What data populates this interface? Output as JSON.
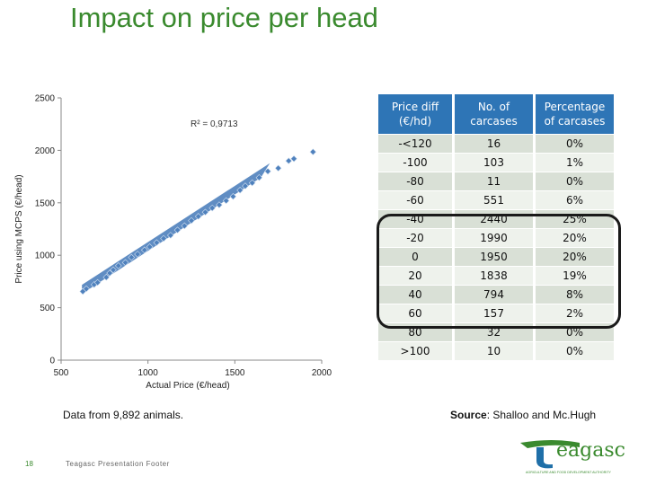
{
  "slide": {
    "title": "Impact on price per head",
    "note": "Data from 9,892 animals.",
    "source_label": "Source",
    "source_text": ": Shalloo and Mc.Hugh",
    "page_number": "18",
    "footer": "Teagasc Presentation Footer",
    "logo_word": "eagasc",
    "logo_tagline": "AGRICULTURE AND FOOD DEVELOPMENT AUTHORITY",
    "colors": {
      "title": "#3a8a2e",
      "series": "#4f81bd",
      "header": "#2e75b6",
      "row": "#d9e0d6",
      "row_alt": "#eef2ec",
      "logo": "#3a8a2e",
      "logo_accent": "#1f6fa8"
    }
  },
  "chart_data": {
    "type": "scatter",
    "xlabel": "Actual Price (€/head)",
    "ylabel": "Price using MCPS (€/head)",
    "xlim": [
      500,
      2000
    ],
    "ylim": [
      0,
      2500
    ],
    "xticks": [
      "500",
      "1000",
      "1500",
      "2000"
    ],
    "yticks": [
      "0",
      "500",
      "1000",
      "1500",
      "2000",
      "2500"
    ],
    "annotation": "R² = 0,9713",
    "grid": false,
    "legend": "none",
    "trend": {
      "x_range": [
        620,
        1960
      ],
      "y_range": [
        650,
        1980
      ]
    },
    "points": [
      [
        625,
        655
      ],
      [
        645,
        680
      ],
      [
        690,
        720
      ],
      [
        710,
        740
      ],
      [
        760,
        790
      ],
      [
        780,
        830
      ],
      [
        800,
        860
      ],
      [
        830,
        900
      ],
      [
        870,
        930
      ],
      [
        905,
        980
      ],
      [
        940,
        1010
      ],
      [
        980,
        1050
      ],
      [
        1010,
        1080
      ],
      [
        1050,
        1120
      ],
      [
        1090,
        1160
      ],
      [
        1130,
        1190
      ],
      [
        1170,
        1240
      ],
      [
        1210,
        1280
      ],
      [
        1250,
        1330
      ],
      [
        1290,
        1370
      ],
      [
        1330,
        1410
      ],
      [
        1370,
        1450
      ],
      [
        1410,
        1480
      ],
      [
        1450,
        1520
      ],
      [
        1490,
        1560
      ],
      [
        1530,
        1620
      ],
      [
        1560,
        1660
      ],
      [
        1600,
        1690
      ],
      [
        1640,
        1740
      ],
      [
        1690,
        1800
      ],
      [
        1750,
        1830
      ],
      [
        1810,
        1900
      ],
      [
        1840,
        1920
      ],
      [
        1950,
        1985
      ]
    ]
  },
  "table": {
    "headers": [
      "Price diff\n(€/hd)",
      "No. of\ncarcases",
      "Percentage\nof carcases"
    ],
    "rows": [
      [
        "-<120",
        "16",
        "0%"
      ],
      [
        "-100",
        "103",
        "1%"
      ],
      [
        "-80",
        "11",
        "0%"
      ],
      [
        "-60",
        "551",
        "6%"
      ],
      [
        "-40",
        "2440",
        "25%"
      ],
      [
        "-20",
        "1990",
        "20%"
      ],
      [
        "0",
        "1950",
        "20%"
      ],
      [
        "20",
        "1838",
        "19%"
      ],
      [
        "40",
        "794",
        "8%"
      ],
      [
        "60",
        "157",
        "2%"
      ],
      [
        "80",
        "32",
        "0%"
      ],
      [
        ">100",
        "10",
        "0%"
      ]
    ]
  }
}
